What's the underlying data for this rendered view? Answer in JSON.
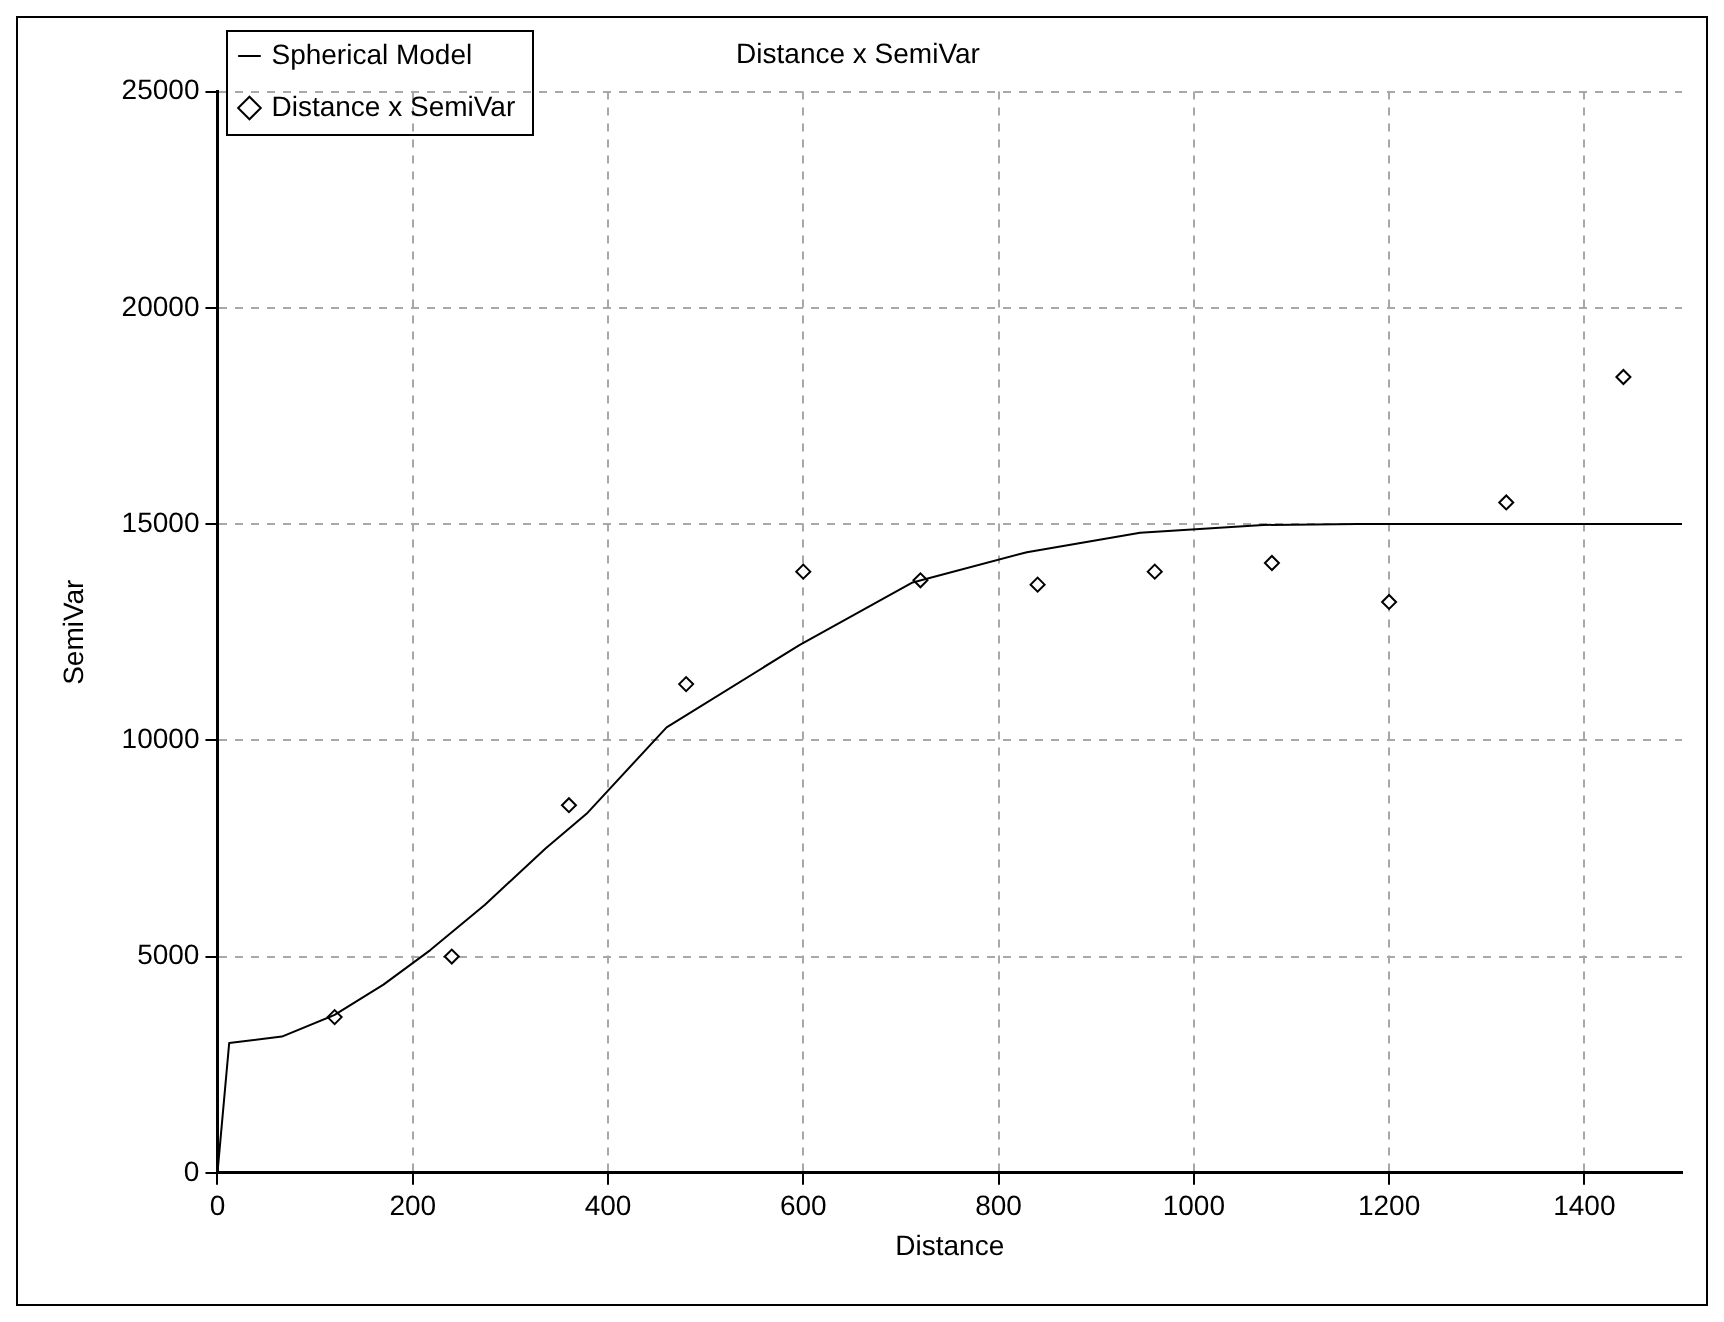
{
  "chart_data": {
    "type": "scatter",
    "title": "Distance x SemiVar",
    "xlabel": "Distance",
    "ylabel": "SemiVar",
    "xlim": [
      0,
      1500
    ],
    "xticks": [
      0,
      200,
      400,
      600,
      800,
      1000,
      1200,
      1400
    ],
    "ylim": [
      0,
      25000
    ],
    "yticks": [
      0,
      5000,
      10000,
      15000,
      20000,
      25000
    ],
    "grid": true,
    "legend": "top left",
    "series": [
      {
        "name": "Spherical Model",
        "type": "line",
        "color": "#000000",
        "marker": "none",
        "x": [
          0,
          12,
          66,
          120,
          170,
          218,
          274,
          336,
          378,
          460,
          596,
          712,
          829,
          945,
          1071,
          1168,
          1500
        ],
        "values": [
          0,
          3000,
          3150,
          3650,
          4350,
          5150,
          6200,
          7500,
          8300,
          10300,
          12200,
          13650,
          14350,
          14800,
          14980,
          15000,
          15000
        ]
      },
      {
        "name": "Distance x SemiVar",
        "type": "scatter",
        "color": "#000000",
        "marker": "diamond",
        "x": [
          120,
          240,
          360,
          480,
          600,
          720,
          840,
          960,
          1080,
          1200,
          1320,
          1440
        ],
        "values": [
          3600,
          5000,
          8500,
          11300,
          13900,
          13700,
          13600,
          13900,
          14100,
          13200,
          15500,
          18400
        ]
      }
    ]
  }
}
